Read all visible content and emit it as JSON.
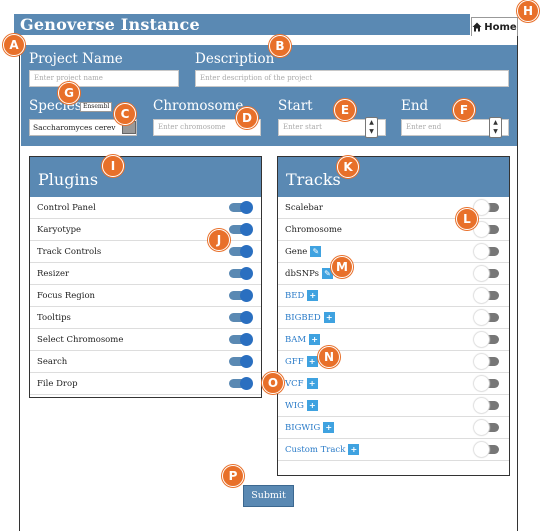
{
  "app_title": "Genoverse Instance",
  "home_label": "Home",
  "form": {
    "project_name": {
      "label": "Project Name",
      "placeholder": "Enter project name"
    },
    "description": {
      "label": "Description",
      "placeholder": "Enter description of the project"
    },
    "species": {
      "label": "Species",
      "value": "Saccharomyces cerev",
      "tooltip": "Ensembl"
    },
    "chromosome": {
      "label": "Chromosome",
      "placeholder": "Enter chromosome"
    },
    "start": {
      "label": "Start",
      "placeholder": "Enter start"
    },
    "end": {
      "label": "End",
      "placeholder": "Enter end"
    }
  },
  "plugins": {
    "title": "Plugins",
    "items": [
      {
        "label": "Control Panel",
        "enabled": true
      },
      {
        "label": "Karyotype",
        "enabled": true
      },
      {
        "label": "Track Controls",
        "enabled": true
      },
      {
        "label": "Resizer",
        "enabled": true
      },
      {
        "label": "Focus Region",
        "enabled": true
      },
      {
        "label": "Tooltips",
        "enabled": true
      },
      {
        "label": "Select Chromosome",
        "enabled": true
      },
      {
        "label": "Search",
        "enabled": true
      },
      {
        "label": "File Drop",
        "enabled": true
      }
    ]
  },
  "tracks": {
    "title": "Tracks",
    "items": [
      {
        "label": "Scalebar",
        "enabled": false
      },
      {
        "label": "Chromosome",
        "enabled": false
      },
      {
        "label": "Gene",
        "enabled": false,
        "button": "edit"
      },
      {
        "label": "dbSNPs",
        "enabled": false,
        "button": "edit"
      },
      {
        "label": "BED",
        "enabled": false,
        "button": "add"
      },
      {
        "label": "BIGBED",
        "enabled": false,
        "button": "add"
      },
      {
        "label": "BAM",
        "enabled": false,
        "button": "add"
      },
      {
        "label": "GFF",
        "enabled": false,
        "button": "add"
      },
      {
        "label": "VCF",
        "enabled": false,
        "button": "add"
      },
      {
        "label": "WIG",
        "enabled": false,
        "button": "add"
      },
      {
        "label": "BIGWIG",
        "enabled": false,
        "button": "add"
      },
      {
        "label": "Custom Track",
        "enabled": false,
        "button": "add"
      }
    ]
  },
  "submit_label": "Submit",
  "callouts": [
    "A",
    "B",
    "C",
    "D",
    "E",
    "F",
    "G",
    "H",
    "I",
    "J",
    "K",
    "L",
    "M",
    "N",
    "O",
    "P"
  ],
  "colors": {
    "header_blue": "#5a89b3",
    "callout_orange": "#e8702a",
    "link_blue": "#2a7bc8"
  }
}
